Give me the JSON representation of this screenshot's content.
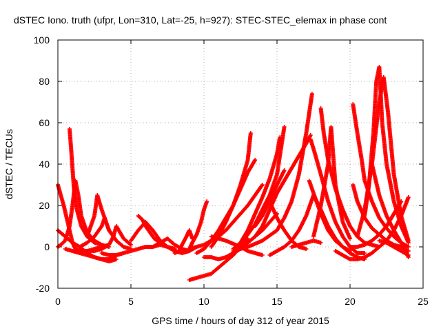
{
  "chart_data": {
    "type": "scatter",
    "title": "dSTEC Iono. truth (ufpr, Lon=310, Lat=-25, h=927): STEC-STEC_elemax in phase cont",
    "xlabel": "GPS time / hours of day 312 of year 2015",
    "ylabel": "dSTEC  / TECUs",
    "xlim": [
      0,
      25
    ],
    "ylim": [
      -20,
      100
    ],
    "xticks": [
      "0",
      "5",
      "10",
      "15",
      "20",
      "25"
    ],
    "yticks": [
      "-20",
      "0",
      "20",
      "40",
      "60",
      "80",
      "100"
    ],
    "grid": true,
    "marker": "plus",
    "color": "#ff0000",
    "series": [
      {
        "x": [
          0.0,
          0.4,
          0.8,
          1.0,
          1.2,
          1.5,
          2.0,
          2.5,
          3.0,
          3.5
        ],
        "y": [
          30,
          20,
          8,
          2,
          -1,
          -2,
          -2,
          -1,
          0,
          1
        ]
      },
      {
        "x": [
          0.0,
          0.2,
          0.5,
          0.8,
          1.0,
          1.2,
          1.4,
          1.6,
          2.0,
          2.5,
          3.0
        ],
        "y": [
          0,
          1,
          3,
          10,
          20,
          32,
          25,
          15,
          7,
          3,
          1
        ]
      },
      {
        "x": [
          0.8,
          0.9,
          1.0,
          1.1,
          1.3,
          1.6,
          2.0,
          2.5,
          3.0,
          3.5
        ],
        "y": [
          57,
          48,
          38,
          28,
          18,
          10,
          5,
          2,
          1,
          0
        ]
      },
      {
        "x": [
          0.0,
          0.5,
          1.0,
          1.5,
          2.0,
          2.5,
          3.0,
          3.5,
          4.0,
          4.5
        ],
        "y": [
          8,
          5,
          2,
          0,
          -3,
          -5,
          -6,
          -6,
          -4,
          -3
        ]
      },
      {
        "x": [
          0.5,
          1.0,
          1.5,
          2.0,
          2.5,
          3.0,
          3.5,
          4.0
        ],
        "y": [
          -1,
          -2,
          -3,
          -4,
          -5,
          -6,
          -7,
          -6
        ]
      },
      {
        "x": [
          2.0,
          2.5,
          2.7,
          3.0,
          3.5,
          4.0,
          4.5,
          5.0
        ],
        "y": [
          5,
          15,
          25,
          18,
          8,
          3,
          0,
          -1
        ]
      },
      {
        "x": [
          1.5,
          2.0,
          2.5,
          3.0,
          3.2,
          3.5,
          4.0
        ],
        "y": [
          0,
          2,
          5,
          10,
          14,
          8,
          3
        ]
      },
      {
        "x": [
          2.0,
          2.5,
          3.0,
          3.5,
          3.8,
          4.0,
          4.5,
          5.0
        ],
        "y": [
          -2,
          -2,
          -1,
          1,
          5,
          10,
          4,
          1
        ]
      },
      {
        "x": [
          3.0,
          3.5,
          4.0,
          4.5,
          5.0,
          5.5,
          6.0,
          6.5,
          7.0,
          7.5,
          8.0
        ],
        "y": [
          -3,
          -4,
          -4,
          -3,
          -2,
          -1,
          0,
          0,
          1,
          0,
          -1
        ]
      },
      {
        "x": [
          5.5,
          5.8,
          6.0,
          6.3,
          6.6,
          7.0,
          7.5,
          8.0
        ],
        "y": [
          15,
          13,
          10,
          7,
          4,
          2,
          0,
          -1
        ]
      },
      {
        "x": [
          5.0,
          5.5,
          6.0,
          6.5,
          7.0,
          7.5,
          8.0,
          8.5,
          9.0
        ],
        "y": [
          3,
          8,
          12,
          8,
          3,
          0,
          -2,
          -3,
          -2
        ]
      },
      {
        "x": [
          6.0,
          6.5,
          7.0,
          7.5,
          8.0,
          8.5,
          9.0,
          9.5
        ],
        "y": [
          0,
          0,
          2,
          4,
          1,
          -1,
          -2,
          0
        ]
      },
      {
        "x": [
          8.0,
          8.3,
          8.5,
          8.8,
          9.0,
          9.2
        ],
        "y": [
          -3,
          -2,
          1,
          5,
          8,
          4
        ]
      },
      {
        "x": [
          9.0,
          9.2,
          9.5,
          9.8,
          10.0,
          10.2
        ],
        "y": [
          -1,
          2,
          6,
          12,
          18,
          22
        ]
      },
      {
        "x": [
          9.0,
          9.5,
          10.0,
          10.5,
          11.0,
          11.5,
          12.0,
          12.5,
          13.0
        ],
        "y": [
          -16,
          -15,
          -14,
          -13,
          -10,
          -7,
          -4,
          0,
          4
        ]
      },
      {
        "x": [
          9.0,
          9.5,
          10.0,
          10.5,
          11.0,
          11.5,
          12.0,
          12.5,
          13.0,
          13.5,
          14.0
        ],
        "y": [
          -1,
          0,
          1,
          3,
          5,
          8,
          12,
          16,
          20,
          25,
          30
        ]
      },
      {
        "x": [
          10.0,
          10.5,
          11.0,
          11.5,
          12.0,
          12.5,
          13.0,
          13.5,
          14.0,
          14.5,
          15.0
        ],
        "y": [
          -5,
          -5,
          -6,
          -5,
          -3,
          -1,
          2,
          5,
          8,
          12,
          16
        ]
      },
      {
        "x": [
          9.5,
          10.0,
          10.5,
          11.0,
          11.5,
          12.0,
          12.5,
          13.0,
          13.5
        ],
        "y": [
          -3,
          -1,
          3,
          8,
          14,
          20,
          28,
          36,
          42
        ]
      },
      {
        "x": [
          10.5,
          11.0,
          11.5,
          12.0,
          12.5,
          13.0,
          13.2
        ],
        "y": [
          0,
          5,
          12,
          20,
          30,
          42,
          55
        ]
      },
      {
        "x": [
          10.5,
          11.5,
          12.5,
          13.0,
          13.5,
          14.0
        ],
        "y": [
          5,
          3,
          0,
          -2,
          -3,
          -4
        ]
      },
      {
        "x": [
          12.5,
          13.0,
          13.5,
          14.0,
          14.5,
          15.0,
          15.2
        ],
        "y": [
          2,
          8,
          16,
          24,
          33,
          45,
          53
        ]
      },
      {
        "x": [
          13.5,
          14.0,
          14.5,
          15.0,
          15.5
        ],
        "y": [
          10,
          15,
          22,
          30,
          37
        ]
      },
      {
        "x": [
          12.0,
          12.5,
          13.0,
          13.5,
          14.0,
          14.5,
          15.0,
          15.5
        ],
        "y": [
          -1,
          2,
          6,
          11,
          18,
          25,
          35,
          58
        ]
      },
      {
        "x": [
          12.0,
          13.0,
          14.0,
          15.0,
          15.5,
          16.0,
          16.5,
          17.0,
          17.4
        ],
        "y": [
          -2,
          0,
          3,
          8,
          14,
          22,
          35,
          55,
          74
        ]
      },
      {
        "x": [
          13.5,
          14.0,
          14.5,
          15.0,
          15.5,
          16.0,
          16.5,
          17.0,
          17.3
        ],
        "y": [
          5,
          10,
          18,
          26,
          32,
          38,
          44,
          50,
          54
        ]
      },
      {
        "x": [
          14.5,
          15.0,
          15.5,
          16.0,
          16.5,
          17.0,
          17.5
        ],
        "y": [
          -4,
          -2,
          0,
          3,
          8,
          15,
          25
        ]
      },
      {
        "x": [
          14.5,
          15.0,
          15.5,
          16.0,
          16.5,
          17.0
        ],
        "y": [
          22,
          14,
          8,
          3,
          0,
          -1
        ]
      },
      {
        "x": [
          16.0,
          16.5,
          17.0,
          17.5,
          18.0
        ],
        "y": [
          0,
          1,
          2,
          3,
          2
        ]
      },
      {
        "x": [
          17.3,
          17.6,
          18.0,
          18.5,
          19.0,
          19.5,
          20.0,
          20.5,
          21.0
        ],
        "y": [
          52,
          45,
          35,
          22,
          12,
          5,
          0,
          -3,
          -3
        ]
      },
      {
        "x": [
          17.2,
          17.6,
          18.0,
          18.5,
          19.0,
          19.5,
          20.0
        ],
        "y": [
          32,
          24,
          16,
          8,
          3,
          0,
          -2
        ]
      },
      {
        "x": [
          18.0,
          18.2,
          18.5,
          19.0,
          19.5,
          20.0,
          20.5,
          21.0,
          21.5,
          22.0
        ],
        "y": [
          67,
          55,
          42,
          28,
          18,
          10,
          5,
          2,
          1,
          0
        ]
      },
      {
        "x": [
          17.5,
          18.0,
          18.5,
          18.7,
          19.0,
          19.5,
          20.0
        ],
        "y": [
          5,
          20,
          40,
          58,
          30,
          12,
          4
        ]
      },
      {
        "x": [
          17.5,
          18.0,
          18.5,
          19.0,
          19.5,
          20.0,
          20.5,
          21.0
        ],
        "y": [
          25,
          18,
          10,
          4,
          0,
          -3,
          -5,
          -6
        ]
      },
      {
        "x": [
          19.0,
          19.5,
          20.0,
          20.5,
          21.0,
          21.5,
          22.0,
          22.5,
          23.0,
          23.5,
          24.0
        ],
        "y": [
          -2,
          -4,
          -6,
          -6,
          -5,
          -3,
          0,
          3,
          8,
          15,
          24
        ]
      },
      {
        "x": [
          20.2,
          20.5,
          20.8,
          21.0,
          21.5,
          22.0,
          22.5,
          23.0,
          23.5,
          24.0
        ],
        "y": [
          69,
          55,
          42,
          32,
          22,
          14,
          9,
          5,
          2,
          0
        ]
      },
      {
        "x": [
          20.2,
          20.5,
          21.0,
          21.5,
          22.0,
          22.5,
          23.0,
          23.5,
          24.0
        ],
        "y": [
          30,
          22,
          14,
          9,
          6,
          3,
          1,
          0,
          -2
        ]
      },
      {
        "x": [
          21.0,
          21.3,
          21.6,
          21.8,
          22.0,
          22.2,
          22.5,
          23.0,
          23.5,
          24.0
        ],
        "y": [
          15,
          30,
          55,
          80,
          87,
          60,
          40,
          22,
          10,
          2
        ]
      },
      {
        "x": [
          20.5,
          21.0,
          21.5,
          22.0,
          22.3,
          22.6,
          23.0,
          23.5,
          24.0
        ],
        "y": [
          5,
          18,
          40,
          70,
          82,
          65,
          35,
          15,
          3
        ]
      },
      {
        "x": [
          21.5,
          22.0,
          22.5,
          23.0,
          23.5,
          24.0
        ],
        "y": [
          40,
          25,
          15,
          8,
          2,
          -5
        ]
      },
      {
        "x": [
          20.0,
          20.5,
          21.0,
          21.5,
          22.0,
          22.5,
          23.0,
          23.5
        ],
        "y": [
          0,
          0,
          1,
          3,
          6,
          10,
          16,
          22
        ]
      },
      {
        "x": [
          22.0,
          22.5,
          23.0,
          23.5,
          24.0
        ],
        "y": [
          3,
          2,
          0,
          -2,
          -4
        ]
      }
    ]
  }
}
